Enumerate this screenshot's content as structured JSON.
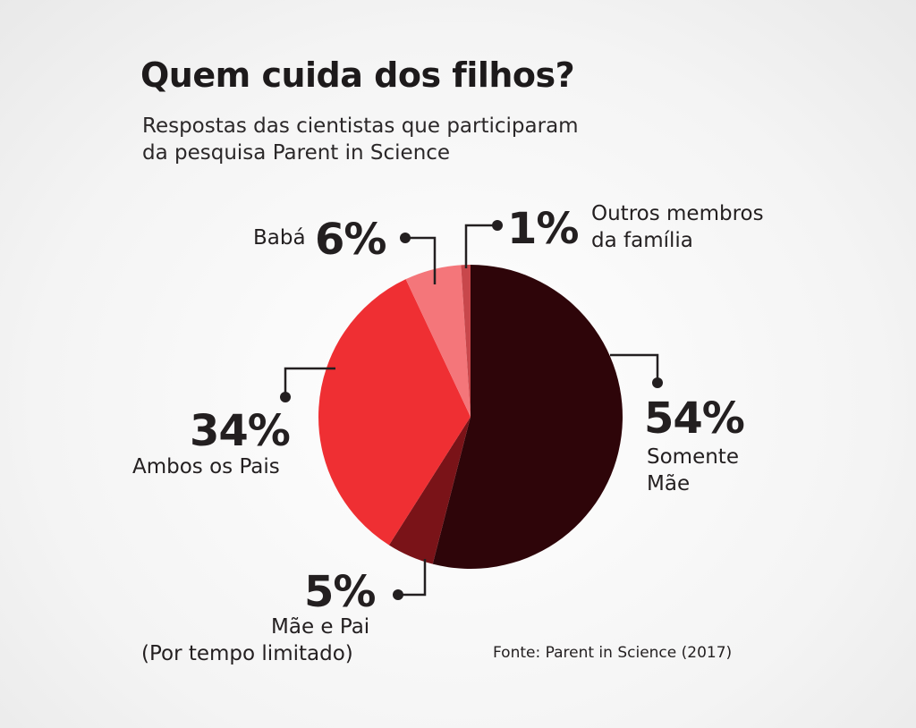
{
  "title": "Quem cuida dos filhos?",
  "subtitle_line1": "Respostas das cientistas que participaram",
  "subtitle_line2": "da pesquisa Parent in Science",
  "source": "Fonte: Parent in Science (2017)",
  "chart_data": {
    "type": "pie",
    "title": "Quem cuida dos filhos?",
    "subtitle": "Respostas das cientistas que participaram da pesquisa Parent in Science",
    "slices": [
      {
        "label": "Somente Mãe",
        "label_line1": "Somente",
        "label_line2": "Mãe",
        "value": 54,
        "display": "54%",
        "color": "#2e0509"
      },
      {
        "label": "Mãe e Pai (Por tempo limitado)",
        "label_line1": "Mãe e Pai",
        "label_line2": "(Por tempo limitado)",
        "value": 5,
        "display": "5%",
        "color": "#7a1318"
      },
      {
        "label": "Ambos os Pais",
        "label_line1": "Ambos os Pais",
        "value": 34,
        "display": "34%",
        "color": "#ef2f33"
      },
      {
        "label": "Babá",
        "label_line1": "Babá",
        "value": 6,
        "display": "6%",
        "color": "#f4767a"
      },
      {
        "label": "Outros membros da família",
        "label_line1": "Outros membros",
        "label_line2": "da família",
        "value": 1,
        "display": "1%",
        "color": "#c8474b"
      }
    ],
    "start": "12 o'clock",
    "direction": "clockwise",
    "legend": "none (direct labels)",
    "source": "Fonte: Parent in Science (2017)"
  }
}
